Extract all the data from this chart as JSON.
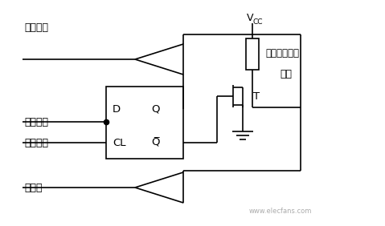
{
  "bg_color": "#ffffff",
  "line_color": "#000000",
  "labels": {
    "read_latch": "读锁存器",
    "internal_bus": "内部总线",
    "write_latch": "写锁存器",
    "read_pin": "读引脚",
    "vcc": "V",
    "vcc_sub": "CC",
    "pullup": "内部上拉电阻",
    "pin": "引脚",
    "T": "T",
    "D": "D",
    "Q": "Q",
    "CL": "CL",
    "Qbar": "Q̅"
  },
  "watermark": "www.elecfans.com",
  "fig_width": 4.79,
  "fig_height": 2.82,
  "dpi": 100
}
